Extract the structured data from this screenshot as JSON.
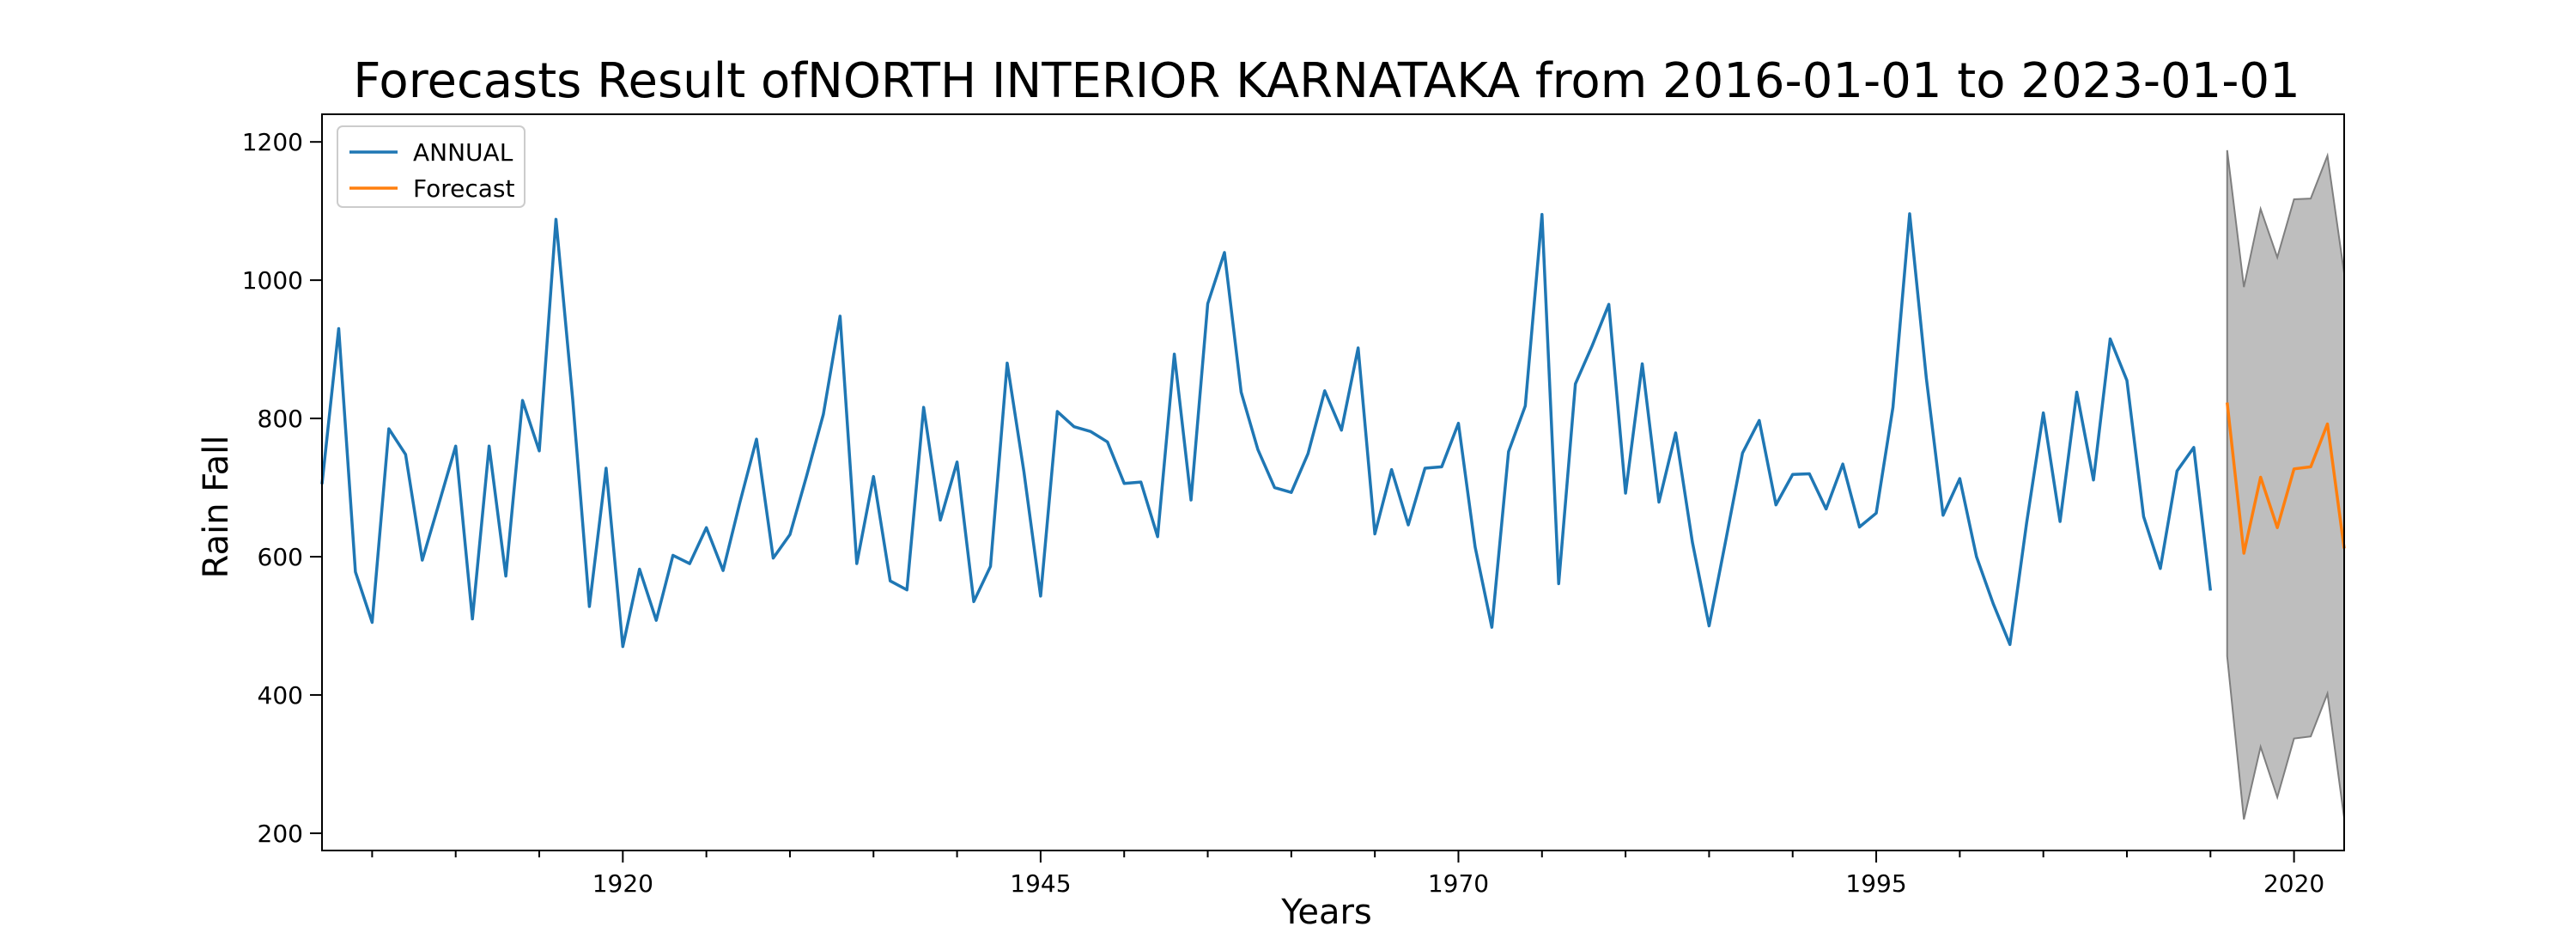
{
  "chart_data": {
    "type": "line",
    "title": "Forecasts Result ofNORTH INTERIOR KARNATAKA from 2016-01-01 to 2023-01-01",
    "xlabel": "Years",
    "ylabel": "Rain Fall",
    "xlim": [
      1902,
      2023
    ],
    "ylim": [
      175,
      1240
    ],
    "x_ticks": [
      1920,
      1945,
      1970,
      1995,
      2020
    ],
    "y_ticks": [
      200,
      400,
      600,
      800,
      1000,
      1200
    ],
    "grid": false,
    "legend_position": "top-left",
    "series": [
      {
        "name": "ANNUAL",
        "color": "#1f77b4",
        "x": [
          1902,
          1903,
          1904,
          1905,
          1906,
          1907,
          1908,
          1909,
          1910,
          1911,
          1912,
          1913,
          1914,
          1915,
          1916,
          1917,
          1918,
          1919,
          1920,
          1921,
          1922,
          1923,
          1924,
          1925,
          1926,
          1927,
          1928,
          1929,
          1930,
          1931,
          1932,
          1933,
          1934,
          1935,
          1936,
          1937,
          1938,
          1939,
          1940,
          1941,
          1942,
          1943,
          1944,
          1945,
          1946,
          1947,
          1948,
          1949,
          1950,
          1951,
          1952,
          1953,
          1954,
          1955,
          1956,
          1957,
          1958,
          1959,
          1960,
          1961,
          1962,
          1963,
          1964,
          1965,
          1966,
          1967,
          1968,
          1969,
          1970,
          1971,
          1972,
          1973,
          1974,
          1975,
          1976,
          1977,
          1978,
          1979,
          1980,
          1981,
          1982,
          1983,
          1984,
          1985,
          1986,
          1987,
          1988,
          1989,
          1990,
          1991,
          1992,
          1993,
          1994,
          1995,
          1996,
          1997,
          1998,
          1999,
          2000,
          2001,
          2002,
          2003,
          2004,
          2005,
          2006,
          2007,
          2008,
          2009,
          2010,
          2011,
          2012,
          2013,
          2014,
          2015
        ],
        "values": [
          705,
          930,
          578,
          505,
          785,
          748,
          595,
          677,
          760,
          510,
          760,
          572,
          826,
          753,
          1088,
          828,
          528,
          728,
          470,
          582,
          508,
          602,
          590,
          642,
          580,
          678,
          770,
          598,
          632,
          717,
          806,
          948,
          590,
          716,
          565,
          552,
          816,
          653,
          737,
          535,
          586,
          880,
          723,
          543,
          810,
          788,
          781,
          766,
          706,
          708,
          629,
          893,
          682,
          966,
          1040,
          838,
          755,
          700,
          693,
          749,
          840,
          783,
          902,
          633,
          726,
          646,
          728,
          730,
          793,
          614,
          498,
          752,
          818,
          1095,
          561,
          850,
          905,
          965,
          692,
          879,
          679,
          779,
          621,
          500,
          624,
          750,
          797,
          675,
          719,
          720,
          669,
          734,
          643,
          663,
          816,
          1096,
          858,
          660,
          713,
          600,
          532,
          473,
          649,
          808,
          651,
          838,
          711,
          915,
          855,
          658,
          583,
          724,
          758,
          551
        ]
      },
      {
        "name": "Forecast",
        "color": "#ff7f0e",
        "x": [
          2016,
          2017,
          2018,
          2019,
          2020,
          2021,
          2022,
          2023
        ],
        "values": [
          823,
          605,
          715,
          642,
          727,
          730,
          792,
          612
        ]
      }
    ],
    "confidence_band": {
      "color": "#bebebe",
      "edge_color": "#7f7f7f",
      "x": [
        2016,
        2017,
        2018,
        2019,
        2020,
        2021,
        2022,
        2023
      ],
      "upper": [
        1188,
        990,
        1103,
        1033,
        1117,
        1118,
        1180,
        1010
      ],
      "lower": [
        456,
        220,
        325,
        252,
        337,
        340,
        402,
        222
      ]
    }
  }
}
